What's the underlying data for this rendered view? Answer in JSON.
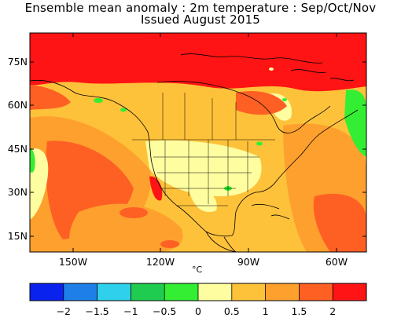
{
  "title_line1": "Ensemble mean anomaly : 2m temperature : Sep/Oct/Nov",
  "title_line2": "Issued August 2015",
  "map": {
    "lat_labels": [
      "75N",
      "60N",
      "45N",
      "30N",
      "15N"
    ],
    "lon_labels": [
      "150W",
      "120W",
      "90W",
      "60W"
    ],
    "region": "North America",
    "lon_range": [
      -170,
      -52
    ],
    "lat_range": [
      10,
      84
    ]
  },
  "colorbar": {
    "units": "°C",
    "labels": [
      "-2",
      "-1.5",
      "-1",
      "-0.5",
      "0",
      "0.5",
      "1",
      "1.5",
      "2"
    ],
    "colors": [
      "#0a22ee",
      "#1f7fe8",
      "#2fd0ec",
      "#1fcc50",
      "#33ee33",
      "#fefea0",
      "#fec23a",
      "#fea02e",
      "#fe6023",
      "#fe1414"
    ]
  }
}
